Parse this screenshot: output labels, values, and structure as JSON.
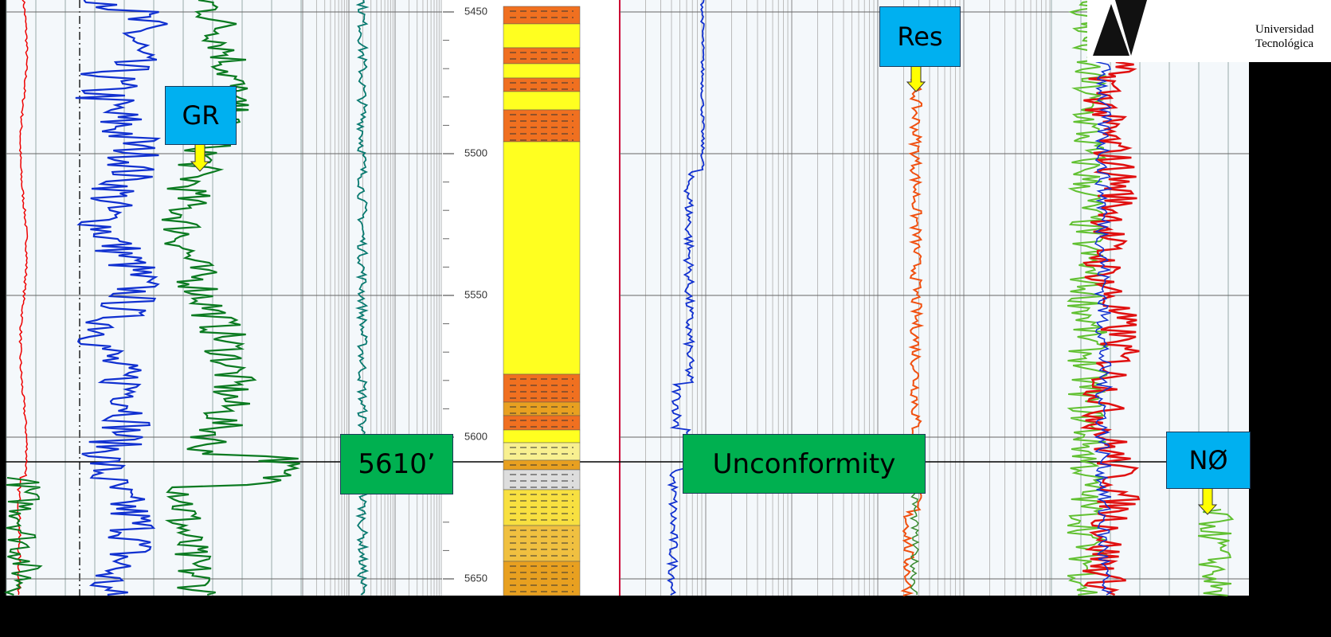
{
  "depth_track": {
    "ticks": [
      5450,
      5500,
      5550,
      5600,
      5650
    ]
  },
  "callouts": {
    "gr": "GR",
    "res": "Res",
    "neutron": "NØ"
  },
  "markers": {
    "depth": "5610’",
    "event": "Unconformity"
  },
  "logo": {
    "line1": "Universidad",
    "line2": "Tecnológica"
  }
}
